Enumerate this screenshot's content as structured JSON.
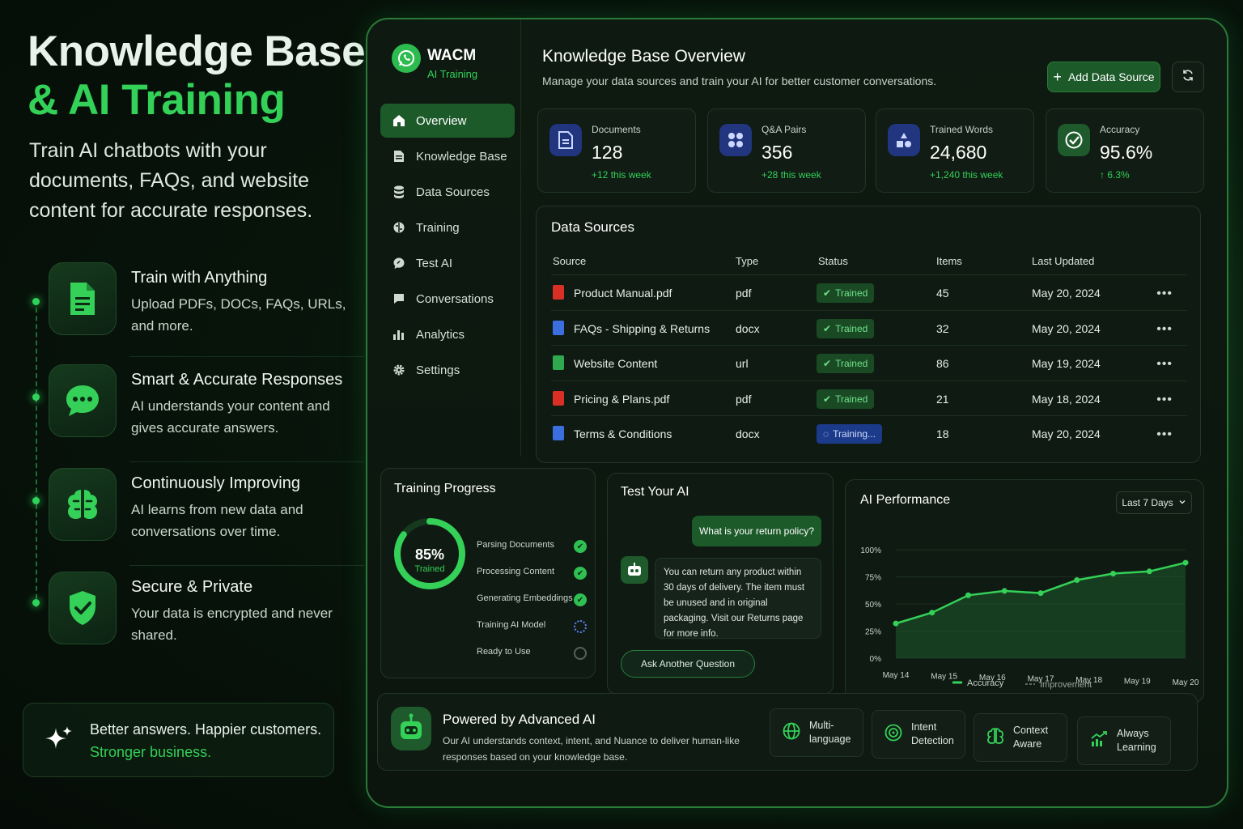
{
  "hero": {
    "title_line1": "Knowledge Base",
    "title_line2": "& AI Training",
    "subtitle": "Train AI chatbots with your documents, FAQs, and website content for accurate responses."
  },
  "features": [
    {
      "title": "Train with Anything",
      "desc": "Upload PDFs, DOCs, FAQs, URLs, and more.",
      "icon": "document-icon"
    },
    {
      "title": "Smart & Accurate Responses",
      "desc": "AI understands your content and gives accurate answers.",
      "icon": "chat-bubble-icon"
    },
    {
      "title": "Continuously Improving",
      "desc": "AI learns from new data and conversations over time.",
      "icon": "brain-icon"
    },
    {
      "title": "Secure & Private",
      "desc": "Your data is encrypted and never shared.",
      "icon": "shield-check-icon"
    }
  ],
  "tagline": {
    "line1": "Better answers. Happier customers.",
    "line2": "Stronger business."
  },
  "app": {
    "brand": "WACM",
    "brand_sub": "AI Training",
    "nav": [
      {
        "label": "Overview",
        "icon": "home-icon"
      },
      {
        "label": "Knowledge Base",
        "icon": "document-icon"
      },
      {
        "label": "Data Sources",
        "icon": "database-icon"
      },
      {
        "label": "Training",
        "icon": "brain-icon"
      },
      {
        "label": "Test AI",
        "icon": "chat-icon"
      },
      {
        "label": "Conversations",
        "icon": "chat-bubble-icon"
      },
      {
        "label": "Analytics",
        "icon": "bar-chart-icon"
      },
      {
        "label": "Settings",
        "icon": "gear-icon"
      }
    ],
    "overview_title": "Knowledge Base Overview",
    "overview_sub": "Manage your data sources and train your AI for better customer conversations.",
    "add_button": "Add Data Source",
    "stats": [
      {
        "label": "Documents",
        "value": "128",
        "delta": "+12 this week",
        "icon": "document-icon",
        "color": "#2a3f9a"
      },
      {
        "label": "Q&A Pairs",
        "value": "356",
        "delta": "+28 this week",
        "icon": "grid-icon",
        "color": "#2a3f9a"
      },
      {
        "label": "Trained Words",
        "value": "24,680",
        "delta": "+1,240 this week",
        "icon": "shapes-icon",
        "color": "#2a3f9a"
      },
      {
        "label": "Accuracy",
        "value": "95.6%",
        "delta": "↑ 6.3%",
        "icon": "check-circle-icon",
        "color": "#1f5a2c"
      }
    ],
    "data_sources": {
      "title": "Data Sources",
      "headers": [
        "Source",
        "Type",
        "Status",
        "Items",
        "Last Updated"
      ],
      "rows": [
        {
          "source": "Product Manual.pdf",
          "type": "pdf",
          "status": "Trained",
          "items": "45",
          "updated": "May 20, 2024",
          "color": "#d93025"
        },
        {
          "source": "FAQs - Shipping & Returns",
          "type": "docx",
          "status": "Trained",
          "items": "32",
          "updated": "May 20, 2024",
          "color": "#3b6fe0"
        },
        {
          "source": "Website Content",
          "type": "url",
          "status": "Trained",
          "items": "86",
          "updated": "May 19, 2024",
          "color": "#2fa84f"
        },
        {
          "source": "Pricing & Plans.pdf",
          "type": "pdf",
          "status": "Trained",
          "items": "21",
          "updated": "May 18, 2024",
          "color": "#d93025"
        },
        {
          "source": "Terms & Conditions",
          "type": "docx",
          "status": "Training...",
          "items": "18",
          "updated": "May 20, 2024",
          "color": "#3b6fe0"
        }
      ]
    },
    "training": {
      "title": "Training Progress",
      "percent_label": "85%",
      "percent": 0.85,
      "percent_sub": "Trained",
      "steps": [
        {
          "label": "Parsing Documents",
          "state": "done"
        },
        {
          "label": "Processing Content",
          "state": "done"
        },
        {
          "label": "Generating Embeddings",
          "state": "done"
        },
        {
          "label": "Training AI Model",
          "state": "running"
        },
        {
          "label": "Ready to Use",
          "state": "pending"
        }
      ]
    },
    "test_ai": {
      "title": "Test Your AI",
      "question": "What is your return policy?",
      "answer": "You can return any product within 30 days of delivery. The item must be unused and in original packaging. Visit our Returns page for more info.",
      "ask_button": "Ask Another Question"
    },
    "performance": {
      "title": "AI Performance",
      "range": "Last 7 Days",
      "legend_accuracy": "Accuracy",
      "legend_improvement": "Improvement"
    },
    "powered": {
      "title": "Powered by Advanced AI",
      "desc": "Our AI understands context, intent, and Nuance to deliver human-like responses based on your knowledge base.",
      "chips": [
        {
          "label": "Multi-language",
          "icon": "globe-icon"
        },
        {
          "label": "Intent Detection",
          "icon": "target-icon"
        },
        {
          "label": "Context Aware",
          "icon": "brain-icon"
        },
        {
          "label": "Always Learning",
          "icon": "trend-up-icon"
        }
      ]
    }
  },
  "chart_data": {
    "type": "area",
    "title": "AI Performance",
    "categories": [
      "May 14",
      "May 15",
      "May 16",
      "May 17",
      "May 18",
      "May 19",
      "May 20"
    ],
    "series": [
      {
        "name": "Accuracy",
        "x": [
          "May 14",
          "May 14.5",
          "May 15.6",
          "May 16",
          "May 16.6",
          "May 17.5",
          "May 18",
          "May 19",
          "May 20"
        ],
        "values": [
          32,
          42,
          58,
          62,
          60,
          72,
          78,
          80,
          88
        ]
      }
    ],
    "ylim": [
      0,
      100
    ],
    "yticks": [
      "100%",
      "75%",
      "50%",
      "25%",
      "0%"
    ],
    "grid": true,
    "legend": "bottom"
  }
}
